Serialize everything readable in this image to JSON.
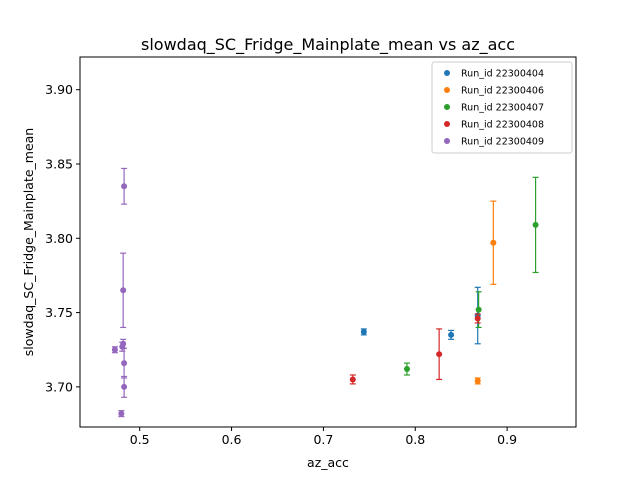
{
  "chart_data": {
    "type": "scatter",
    "title": "slowdaq_SC_Fridge_Mainplate_mean vs az_acc",
    "xlabel": "az_acc",
    "ylabel": "slowdaq_SC_Fridge_Mainplate_mean",
    "xlim": [
      0.435,
      0.975
    ],
    "ylim": [
      3.673,
      3.922
    ],
    "xticks": [
      0.5,
      0.6,
      0.7,
      0.8,
      0.9
    ],
    "yticks": [
      3.7,
      3.75,
      3.8,
      3.85,
      3.9
    ],
    "xtick_labels": [
      "0.5",
      "0.6",
      "0.7",
      "0.8",
      "0.9"
    ],
    "ytick_labels": [
      "3.70",
      "3.75",
      "3.80",
      "3.85",
      "3.90"
    ],
    "legend_position": "top-right",
    "grid": false,
    "series": [
      {
        "name": "Run_id 22300404",
        "color": "#1f77b4",
        "points": [
          {
            "x": 0.744,
            "y": 3.737,
            "err": 0.002
          },
          {
            "x": 0.839,
            "y": 3.735,
            "err": 0.003
          },
          {
            "x": 0.868,
            "y": 3.748,
            "err": 0.019
          }
        ]
      },
      {
        "name": "Run_id 22300406",
        "color": "#ff7f0e",
        "points": [
          {
            "x": 0.868,
            "y": 3.704,
            "err": 0.002
          },
          {
            "x": 0.885,
            "y": 3.797,
            "err": 0.028
          }
        ]
      },
      {
        "name": "Run_id 22300407",
        "color": "#2ca02c",
        "points": [
          {
            "x": 0.791,
            "y": 3.712,
            "err": 0.004
          },
          {
            "x": 0.869,
            "y": 3.752,
            "err": 0.012
          },
          {
            "x": 0.931,
            "y": 3.809,
            "err": 0.032
          }
        ]
      },
      {
        "name": "Run_id 22300408",
        "color": "#d62728",
        "points": [
          {
            "x": 0.732,
            "y": 3.705,
            "err": 0.003
          },
          {
            "x": 0.826,
            "y": 3.722,
            "err": 0.017
          },
          {
            "x": 0.868,
            "y": 3.746,
            "err": 0.003
          }
        ]
      },
      {
        "name": "Run_id 22300409",
        "color": "#9467bd",
        "points": [
          {
            "x": 0.473,
            "y": 3.725,
            "err": 0.002
          },
          {
            "x": 0.48,
            "y": 3.682,
            "err": 0.002
          },
          {
            "x": 0.481,
            "y": 3.727,
            "err": 0.003
          },
          {
            "x": 0.482,
            "y": 3.729,
            "err": 0.003
          },
          {
            "x": 0.482,
            "y": 3.765,
            "err": 0.025
          },
          {
            "x": 0.483,
            "y": 3.716,
            "err": 0.01
          },
          {
            "x": 0.483,
            "y": 3.7,
            "err": 0.007
          },
          {
            "x": 0.483,
            "y": 3.835,
            "err": 0.012
          }
        ]
      }
    ]
  }
}
